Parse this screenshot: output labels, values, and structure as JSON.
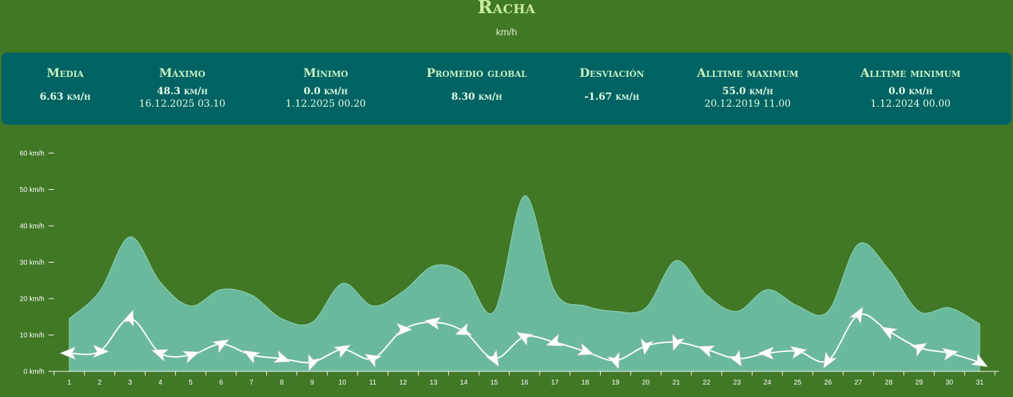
{
  "header": {
    "title": "Racha",
    "subtitle": "km/h"
  },
  "stats": [
    {
      "label": "Media",
      "value": "6.63 km/h",
      "date": ""
    },
    {
      "label": "Máximo",
      "value": "48.3 km/h",
      "date": "16.12.2025 03.10"
    },
    {
      "label": "Mínimo",
      "value": "0.0 km/h",
      "date": "1.12.2025 00.20"
    },
    {
      "label": "Promedio global",
      "value": "8.30 km/h",
      "date": ""
    },
    {
      "label": "Desviación",
      "value": "-1.67 km/h",
      "date": ""
    },
    {
      "label": "Alltime maximum",
      "value": "55.0 km/h",
      "date": "20.12.2019 11.00"
    },
    {
      "label": "Alltime minimum",
      "value": "0.0 km/h",
      "date": "1.12.2024 00.00"
    }
  ],
  "colors": {
    "background": "#417826",
    "panel": "#006363",
    "area": "#6bb99c",
    "line": "#ffffff",
    "title": "#c6ec9c"
  },
  "chart_data": {
    "type": "area",
    "x": [
      1,
      2,
      3,
      4,
      5,
      6,
      7,
      8,
      9,
      10,
      11,
      12,
      13,
      14,
      15,
      16,
      17,
      18,
      19,
      20,
      21,
      22,
      23,
      24,
      25,
      26,
      27,
      28,
      29,
      30,
      31
    ],
    "ylim": [
      0,
      60
    ],
    "yticks": [
      "0 km/h",
      "10 km/h",
      "20 km/h",
      "30 km/h",
      "40 km/h",
      "50 km/h",
      "60 km/h"
    ],
    "ytick_values": [
      0,
      10,
      20,
      30,
      40,
      50,
      60
    ],
    "grid": false,
    "series": [
      {
        "kind": "area",
        "values": [
          14.5,
          22,
          37,
          24.5,
          18,
          22.5,
          21,
          14.5,
          13.5,
          24.2,
          18,
          22,
          29,
          27,
          16.5,
          48.3,
          22,
          18,
          16.5,
          17.5,
          30.5,
          21,
          16.5,
          22.5,
          18,
          16.5,
          35,
          28,
          16.5,
          17.5,
          13
        ]
      },
      {
        "kind": "line",
        "values": [
          5,
          5.5,
          14.5,
          5,
          4.5,
          7.5,
          4.5,
          3.5,
          2.5,
          6,
          3.5,
          11.5,
          13.5,
          11,
          3.5,
          9.5,
          8,
          5.5,
          3,
          7,
          8,
          6,
          3.5,
          5,
          5.5,
          3,
          15.5,
          11,
          6.5,
          5,
          2.5
        ]
      }
    ],
    "wind_direction_deg": [
      270,
      90,
      20,
      290,
      70,
      60,
      300,
      110,
      200,
      60,
      300,
      90,
      280,
      250,
      150,
      300,
      250,
      110,
      160,
      190,
      200,
      290,
      150,
      270,
      80,
      210,
      30,
      300,
      60,
      80,
      120
    ]
  }
}
